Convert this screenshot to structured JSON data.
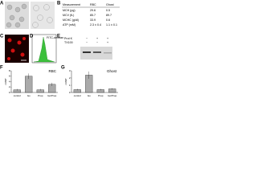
{
  "panel_letters": [
    "A",
    "B",
    "C",
    "D",
    "E",
    "F",
    "G"
  ],
  "table": {
    "header": [
      "Measurement",
      "RBC",
      "Ghost"
    ],
    "rows": [
      [
        "MCH (pg)",
        "29.6",
        "0.5"
      ],
      [
        "MCV (fL)",
        "85.7",
        "89.7"
      ],
      [
        "MCHC (g/dl)",
        "33.9",
        "0.6"
      ],
      [
        "ATP (mM)",
        "2.3 ± 0.4",
        "1.1 ± 0.1"
      ]
    ]
  },
  "histogram_label": "FITC-dextran",
  "gel": {
    "rows": [
      {
        "label": "Prot K",
        "lanes": [
          "−",
          "+",
          "+"
        ]
      },
      {
        "label": "TX100",
        "lanes": [
          "−",
          "−",
          "+"
        ]
      }
    ]
  },
  "chart_data": [
    {
      "type": "bar",
      "title": "RBC",
      "y_label": "cAMP",
      "categories": [
        "control",
        "Iso",
        "Prop",
        "Iso/Prop"
      ],
      "values": [
        1,
        6,
        1,
        3
      ],
      "errors": [
        0.3,
        1,
        0.3,
        0.6
      ],
      "color": "#aaaaaa",
      "ylim": [
        0,
        8
      ],
      "yticks": [
        0,
        2,
        4,
        6,
        8
      ]
    },
    {
      "type": "bar",
      "title": "Ghost",
      "y_label": "cAMP",
      "categories": [
        "control",
        "Iso",
        "Prop",
        "Iso/Prop"
      ],
      "values": [
        0.4,
        2.4,
        0.4,
        0.5
      ],
      "errors": [
        0.1,
        0.5,
        0.1,
        0.1
      ],
      "color": "#aaaaaa",
      "ylim": [
        0,
        3
      ],
      "yticks": [
        0,
        1,
        2,
        3
      ]
    }
  ]
}
